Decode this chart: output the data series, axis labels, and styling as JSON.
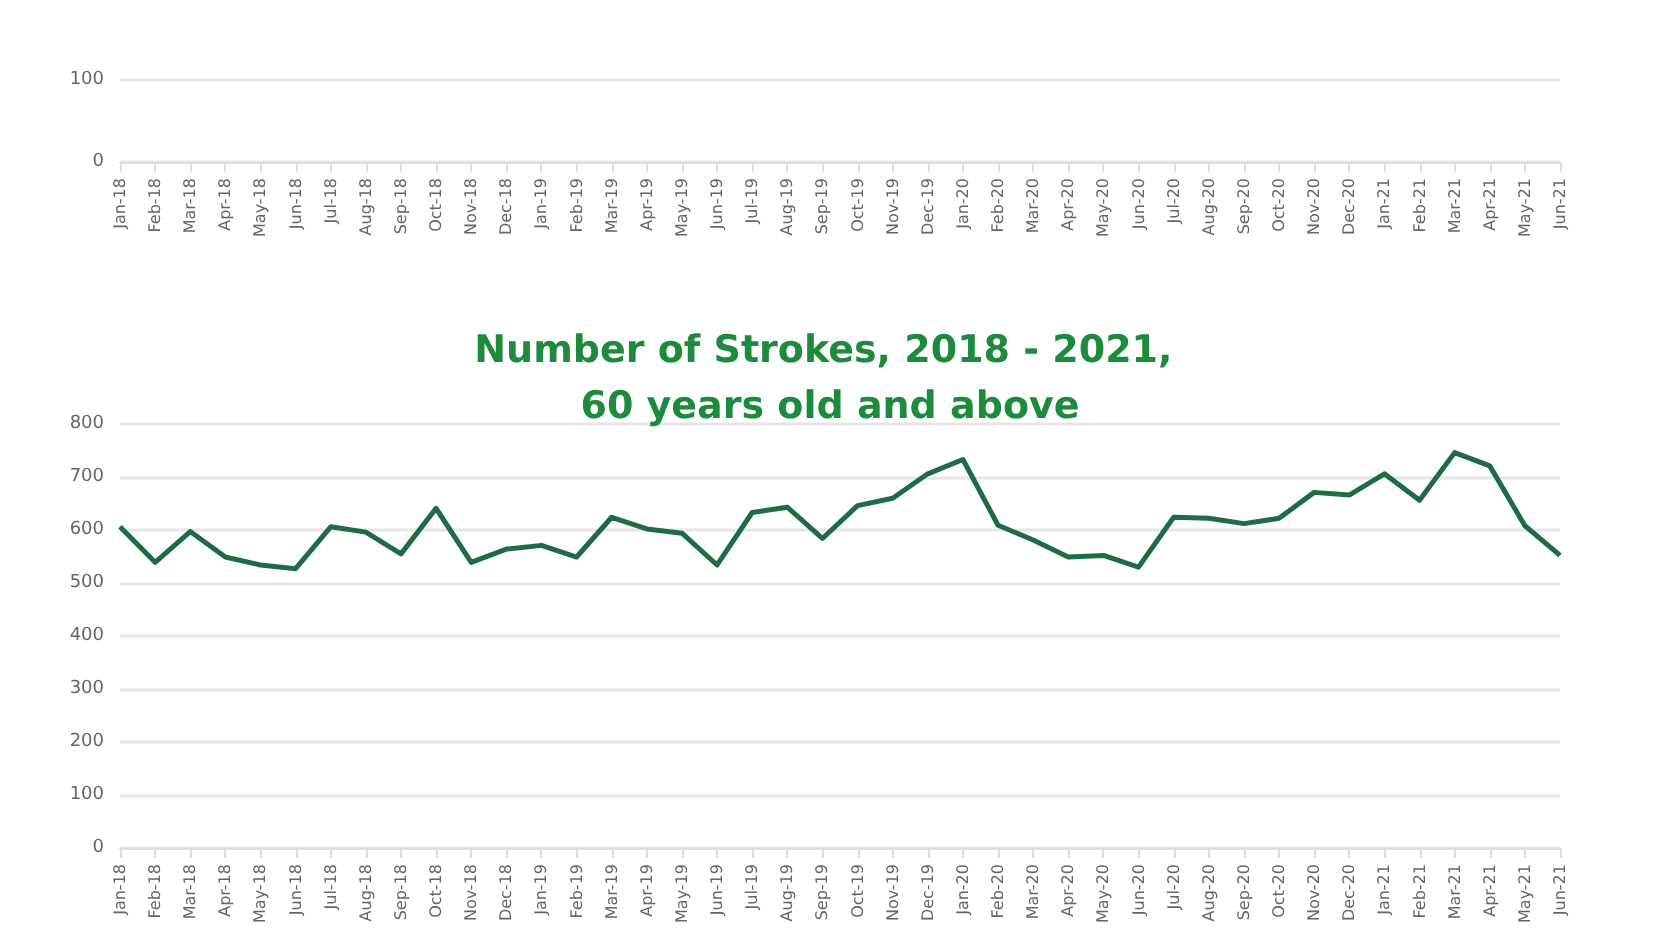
{
  "chart_data": [
    {
      "type": "line",
      "categories": [
        "Jan-18",
        "Feb-18",
        "Mar-18",
        "Apr-18",
        "May-18",
        "Jun-18",
        "Jul-18",
        "Aug-18",
        "Sep-18",
        "Oct-18",
        "Nov-18",
        "Dec-18",
        "Jan-19",
        "Feb-19",
        "Mar-19",
        "Apr-19",
        "May-19",
        "Jun-19",
        "Jul-19",
        "Aug-19",
        "Sep-19",
        "Oct-19",
        "Nov-19",
        "Dec-19",
        "Jan-20",
        "Feb-20",
        "Mar-20",
        "Apr-20",
        "May-20",
        "Jun-20",
        "Jul-20",
        "Aug-20",
        "Sep-20",
        "Oct-20",
        "Nov-20",
        "Dec-20",
        "Jan-21",
        "Feb-21",
        "Mar-21",
        "Apr-21",
        "May-21",
        "Jun-21"
      ],
      "series": [
        {
          "color": "#1f6b45",
          "values": [
            null,
            null,
            null,
            null,
            null,
            null,
            null,
            null,
            null,
            null,
            null,
            null,
            null,
            null,
            null,
            null,
            null,
            null,
            null,
            null,
            null,
            null,
            null,
            null,
            null,
            null,
            null,
            null,
            null,
            null,
            null,
            null,
            null,
            null,
            null,
            null,
            null,
            null,
            null,
            null,
            null,
            null
          ]
        }
      ],
      "ylim": [
        0,
        100
      ],
      "yticks": [
        0,
        100
      ],
      "grid": "y",
      "marker": "none",
      "line_style": "solid"
    },
    {
      "type": "line",
      "title": "Number of Strokes, 2018 - 2021, 60 years old and above",
      "categories": [
        "Jan-18",
        "Feb-18",
        "Mar-18",
        "Apr-18",
        "May-18",
        "Jun-18",
        "Jul-18",
        "Aug-18",
        "Sep-18",
        "Oct-18",
        "Nov-18",
        "Dec-18",
        "Jan-19",
        "Feb-19",
        "Mar-19",
        "Apr-19",
        "May-19",
        "Jun-19",
        "Jul-19",
        "Aug-19",
        "Sep-19",
        "Oct-19",
        "Nov-19",
        "Dec-19",
        "Jan-20",
        "Feb-20",
        "Mar-20",
        "Apr-20",
        "May-20",
        "Jun-20",
        "Jul-20",
        "Aug-20",
        "Sep-20",
        "Oct-20",
        "Nov-20",
        "Dec-20",
        "Jan-21",
        "Feb-21",
        "Mar-21",
        "Apr-21",
        "May-21",
        "Jun-21"
      ],
      "series": [
        {
          "color": "#1f6b45",
          "values": [
            606,
            539,
            597,
            549,
            534,
            527,
            606,
            596,
            555,
            641,
            539,
            564,
            571,
            549,
            624,
            602,
            594,
            534,
            633,
            643,
            584,
            646,
            660,
            706,
            733,
            609,
            581,
            549,
            552,
            530,
            624,
            622,
            612,
            622,
            671,
            666,
            706,
            656,
            746,
            721,
            608,
            552
          ]
        }
      ],
      "ylim": [
        0,
        800
      ],
      "yticks": [
        0,
        100,
        200,
        300,
        400,
        500,
        600,
        700,
        800
      ],
      "grid": "y",
      "marker": "none",
      "line_style": "solid"
    }
  ]
}
